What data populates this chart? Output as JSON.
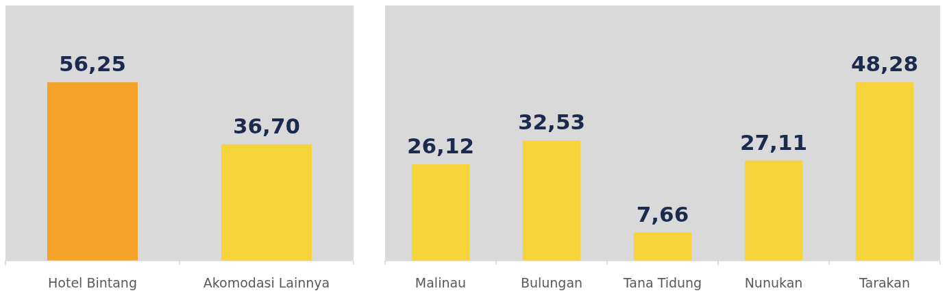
{
  "chart_data": [
    {
      "type": "bar",
      "categories": [
        "Hotel Bintang",
        "Akomodasi Lainnya"
      ],
      "values": [
        56.25,
        36.7
      ],
      "value_labels": [
        "56,25",
        "36,70"
      ],
      "colors": [
        "#f5a229",
        "#f6d43a"
      ],
      "tick_labels": "x"
    },
    {
      "type": "bar",
      "categories": [
        "Malinau",
        "Bulungan",
        "Tana Tidung",
        "Nunukan",
        "Tarakan"
      ],
      "values": [
        26.12,
        32.53,
        7.66,
        27.11,
        48.28
      ],
      "value_labels": [
        "26,12",
        "32,53",
        "7,66",
        "27,11",
        "48,28"
      ],
      "colors": [
        "#f6d43a",
        "#f6d43a",
        "#f6d43a",
        "#f6d43a",
        "#f6d43a"
      ],
      "tick_labels": "x"
    }
  ]
}
